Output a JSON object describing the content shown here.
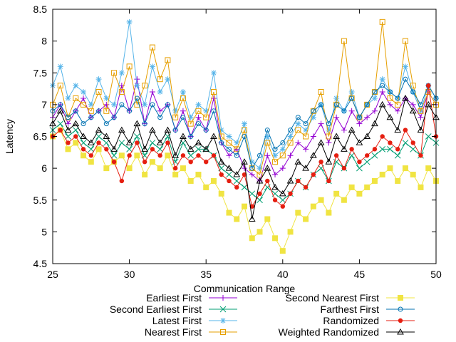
{
  "chart_data": {
    "type": "line",
    "title": "",
    "xlabel": "Communication Range",
    "ylabel": "Latency",
    "xlim": [
      25,
      50
    ],
    "ylim": [
      4.5,
      8.5
    ],
    "xticks": [
      25,
      30,
      35,
      40,
      45,
      50
    ],
    "yticks": [
      4.5,
      5,
      5.5,
      6,
      6.5,
      7,
      7.5,
      8,
      8.5
    ],
    "grid": false,
    "legend_position": "bottom",
    "series": [
      {
        "name": "Earliest First",
        "color": "#9400d3",
        "marker": "plus",
        "x": [
          25,
          25.5,
          26,
          26.5,
          27,
          27.5,
          28,
          28.5,
          29,
          29.5,
          30,
          30.5,
          31,
          31.5,
          32,
          32.5,
          33,
          33.5,
          34,
          34.5,
          35,
          35.5,
          36,
          36.5,
          37,
          37.5,
          38,
          38.5,
          39,
          39.5,
          40,
          40.5,
          41,
          41.5,
          42,
          42.5,
          43,
          43.5,
          44,
          44.5,
          45,
          45.5,
          46,
          46.5,
          47,
          47.5,
          48,
          48.5,
          49,
          49.5,
          50
        ],
        "y": [
          6.8,
          7.0,
          6.7,
          6.9,
          7.1,
          6.8,
          6.9,
          7.0,
          6.8,
          7.3,
          6.9,
          7.4,
          6.7,
          7.2,
          6.9,
          7.0,
          6.6,
          6.9,
          6.5,
          6.8,
          6.6,
          7.1,
          6.4,
          6.2,
          6.3,
          6.0,
          5.9,
          5.8,
          6.2,
          5.9,
          6.0,
          6.2,
          6.4,
          6.3,
          6.5,
          6.7,
          6.4,
          6.8,
          6.6,
          6.9,
          6.7,
          6.8,
          6.9,
          7.2,
          7.0,
          6.9,
          7.1,
          7.0,
          6.8,
          7.2,
          7.0
        ]
      },
      {
        "name": "Second Earliest First",
        "color": "#009e73",
        "marker": "x",
        "x": [
          25,
          25.5,
          26,
          26.5,
          27,
          27.5,
          28,
          28.5,
          29,
          29.5,
          30,
          30.5,
          31,
          31.5,
          32,
          32.5,
          33,
          33.5,
          34,
          34.5,
          35,
          35.5,
          36,
          36.5,
          37,
          37.5,
          38,
          38.5,
          39,
          39.5,
          40,
          40.5,
          41,
          41.5,
          42,
          42.5,
          43,
          43.5,
          44,
          44.5,
          45,
          45.5,
          46,
          46.5,
          47,
          47.5,
          48,
          48.5,
          49,
          49.5,
          50
        ],
        "y": [
          6.6,
          6.7,
          6.5,
          6.6,
          6.4,
          6.3,
          6.5,
          6.4,
          6.2,
          6.4,
          6.3,
          6.5,
          6.2,
          6.4,
          6.3,
          6.5,
          6.1,
          6.4,
          6.2,
          6.3,
          6.3,
          6.2,
          6.0,
          5.9,
          5.8,
          5.7,
          5.6,
          5.5,
          5.7,
          5.6,
          5.5,
          5.6,
          5.8,
          5.7,
          5.9,
          6.0,
          5.8,
          6.1,
          6.0,
          6.2,
          6.0,
          6.1,
          6.2,
          6.3,
          6.3,
          6.2,
          6.4,
          6.3,
          6.2,
          6.5,
          6.4
        ]
      },
      {
        "name": "Latest First",
        "color": "#56b4e9",
        "marker": "star",
        "x": [
          25,
          25.5,
          26,
          26.5,
          27,
          27.5,
          28,
          28.5,
          29,
          29.5,
          30,
          30.5,
          31,
          31.5,
          32,
          32.5,
          33,
          33.5,
          34,
          34.5,
          35,
          35.5,
          36,
          36.5,
          37,
          37.5,
          38,
          38.5,
          39,
          39.5,
          40,
          40.5,
          41,
          41.5,
          42,
          42.5,
          43,
          43.5,
          44,
          44.5,
          45,
          45.5,
          46,
          46.5,
          47,
          47.5,
          48,
          48.5,
          49,
          49.5,
          50
        ],
        "y": [
          7.3,
          7.6,
          7.1,
          7.3,
          7.2,
          7.0,
          7.4,
          7.1,
          7.0,
          7.5,
          8.3,
          7.3,
          7.0,
          7.6,
          7.2,
          7.4,
          6.9,
          7.2,
          6.8,
          7.0,
          6.9,
          7.5,
          6.6,
          6.5,
          6.4,
          6.7,
          6.1,
          6.0,
          6.5,
          6.2,
          6.3,
          6.5,
          6.7,
          6.6,
          6.8,
          7.0,
          6.6,
          7.1,
          6.9,
          7.2,
          6.8,
          7.0,
          7.1,
          7.4,
          7.2,
          7.1,
          7.6,
          7.2,
          6.9,
          7.3,
          7.1
        ]
      },
      {
        "name": "Nearest First",
        "color": "#e69f00",
        "marker": "square-open",
        "x": [
          25,
          25.5,
          26,
          26.5,
          27,
          27.5,
          28,
          28.5,
          29,
          29.5,
          30,
          30.5,
          31,
          31.5,
          32,
          32.5,
          33,
          33.5,
          34,
          34.5,
          35,
          35.5,
          36,
          36.5,
          37,
          37.5,
          38,
          38.5,
          39,
          39.5,
          40,
          40.5,
          41,
          41.5,
          42,
          42.5,
          43,
          43.5,
          44,
          44.5,
          45,
          45.5,
          46,
          46.5,
          47,
          47.5,
          48,
          48.5,
          49,
          49.5,
          50
        ],
        "y": [
          7.0,
          7.3,
          6.8,
          7.1,
          7.0,
          6.9,
          7.2,
          6.9,
          7.5,
          7.2,
          7.6,
          7.0,
          7.3,
          7.9,
          7.4,
          7.7,
          6.8,
          7.1,
          6.7,
          6.9,
          6.8,
          7.2,
          6.5,
          6.4,
          6.3,
          6.6,
          6.0,
          5.9,
          6.4,
          6.1,
          6.2,
          6.4,
          6.6,
          6.5,
          6.9,
          7.2,
          6.5,
          7.0,
          8.0,
          7.1,
          6.8,
          7.0,
          7.2,
          8.3,
          7.1,
          7.0,
          8.0,
          7.3,
          6.9,
          7.2,
          7.0
        ]
      },
      {
        "name": "Second Nearest First",
        "color": "#f0e442",
        "marker": "square-filled",
        "x": [
          25,
          25.5,
          26,
          26.5,
          27,
          27.5,
          28,
          28.5,
          29,
          29.5,
          30,
          30.5,
          31,
          31.5,
          32,
          32.5,
          33,
          33.5,
          34,
          34.5,
          35,
          35.5,
          36,
          36.5,
          37,
          37.5,
          38,
          38.5,
          39,
          39.5,
          40,
          40.5,
          41,
          41.5,
          42,
          42.5,
          43,
          43.5,
          44,
          44.5,
          45,
          45.5,
          46,
          46.5,
          47,
          47.5,
          48,
          48.5,
          49,
          49.5,
          50
        ],
        "y": [
          6.5,
          6.6,
          6.3,
          6.4,
          6.2,
          6.1,
          6.3,
          6.0,
          6.1,
          6.2,
          6.0,
          6.2,
          5.9,
          6.1,
          6.0,
          6.2,
          5.9,
          6.0,
          5.8,
          5.9,
          5.7,
          5.8,
          5.6,
          5.3,
          5.2,
          5.4,
          4.9,
          5.0,
          5.2,
          4.9,
          4.7,
          5.0,
          5.3,
          5.2,
          5.4,
          5.5,
          5.3,
          5.6,
          5.5,
          5.7,
          5.6,
          5.7,
          5.8,
          5.9,
          6.0,
          5.8,
          6.0,
          5.9,
          5.7,
          6.0,
          5.8
        ]
      },
      {
        "name": "Farthest First",
        "color": "#0072b2",
        "marker": "circle-open",
        "x": [
          25,
          25.5,
          26,
          26.5,
          27,
          27.5,
          28,
          28.5,
          29,
          29.5,
          30,
          30.5,
          31,
          31.5,
          32,
          32.5,
          33,
          33.5,
          34,
          34.5,
          35,
          35.5,
          36,
          36.5,
          37,
          37.5,
          38,
          38.5,
          39,
          39.5,
          40,
          40.5,
          41,
          41.5,
          42,
          42.5,
          43,
          43.5,
          44,
          44.5,
          45,
          45.5,
          46,
          46.5,
          47,
          47.5,
          48,
          48.5,
          49,
          49.5,
          50
        ],
        "y": [
          6.9,
          7.0,
          6.8,
          6.9,
          6.7,
          6.8,
          6.9,
          6.7,
          6.8,
          7.0,
          6.9,
          7.1,
          6.7,
          7.0,
          6.8,
          7.0,
          6.6,
          6.8,
          6.5,
          6.7,
          6.6,
          6.9,
          6.4,
          6.3,
          6.2,
          6.5,
          6.0,
          6.2,
          6.6,
          6.3,
          6.4,
          6.6,
          6.8,
          6.7,
          6.9,
          7.0,
          6.7,
          7.0,
          6.9,
          7.1,
          6.8,
          7.0,
          7.2,
          7.3,
          7.2,
          7.1,
          7.4,
          7.2,
          7.0,
          7.3,
          7.1
        ]
      },
      {
        "name": "Randomized",
        "color": "#e51e10",
        "marker": "asterisk",
        "x": [
          25,
          25.5,
          26,
          26.5,
          27,
          27.5,
          28,
          28.5,
          29,
          29.5,
          30,
          30.5,
          31,
          31.5,
          32,
          32.5,
          33,
          33.5,
          34,
          34.5,
          35,
          35.5,
          36,
          36.5,
          37,
          37.5,
          38,
          38.5,
          39,
          39.5,
          40,
          40.5,
          41,
          41.5,
          42,
          42.5,
          43,
          43.5,
          44,
          44.5,
          45,
          45.5,
          46,
          46.5,
          47,
          47.5,
          48,
          48.5,
          49,
          49.5,
          50
        ],
        "y": [
          6.5,
          6.6,
          6.4,
          6.5,
          6.3,
          6.2,
          6.4,
          6.3,
          6.1,
          5.8,
          6.2,
          6.4,
          6.1,
          6.3,
          6.2,
          6.4,
          6.0,
          6.2,
          6.1,
          6.2,
          6.1,
          6.2,
          5.9,
          5.8,
          5.7,
          5.9,
          5.4,
          5.6,
          5.8,
          5.5,
          5.4,
          5.6,
          5.8,
          5.7,
          5.9,
          6.1,
          5.8,
          6.2,
          6.0,
          6.3,
          6.1,
          6.2,
          6.3,
          6.5,
          6.4,
          6.3,
          6.6,
          6.4,
          6.2,
          7.3,
          6.5
        ]
      },
      {
        "name": "Weighted Randomized",
        "color": "#000000",
        "marker": "triangle-open",
        "x": [
          25,
          25.5,
          26,
          26.5,
          27,
          27.5,
          28,
          28.5,
          29,
          29.5,
          30,
          30.5,
          31,
          31.5,
          32,
          32.5,
          33,
          33.5,
          34,
          34.5,
          35,
          35.5,
          36,
          36.5,
          37,
          37.5,
          38,
          38.5,
          39,
          39.5,
          40,
          40.5,
          41,
          41.5,
          42,
          42.5,
          43,
          43.5,
          44,
          44.5,
          45,
          45.5,
          46,
          46.5,
          47,
          47.5,
          48,
          48.5,
          49,
          49.5,
          50
        ],
        "y": [
          6.7,
          6.9,
          6.6,
          6.7,
          6.5,
          6.4,
          6.6,
          6.5,
          6.3,
          6.6,
          6.4,
          6.7,
          6.3,
          6.6,
          6.4,
          6.6,
          6.2,
          6.5,
          6.3,
          6.4,
          6.3,
          6.5,
          6.1,
          6.0,
          5.9,
          6.1,
          5.2,
          5.8,
          6.0,
          5.7,
          5.6,
          5.8,
          6.1,
          6.0,
          6.2,
          6.4,
          6.1,
          6.5,
          6.3,
          6.6,
          6.4,
          6.5,
          6.7,
          7.0,
          6.8,
          6.6,
          7.1,
          6.9,
          6.6,
          7.0,
          6.8
        ]
      }
    ]
  }
}
